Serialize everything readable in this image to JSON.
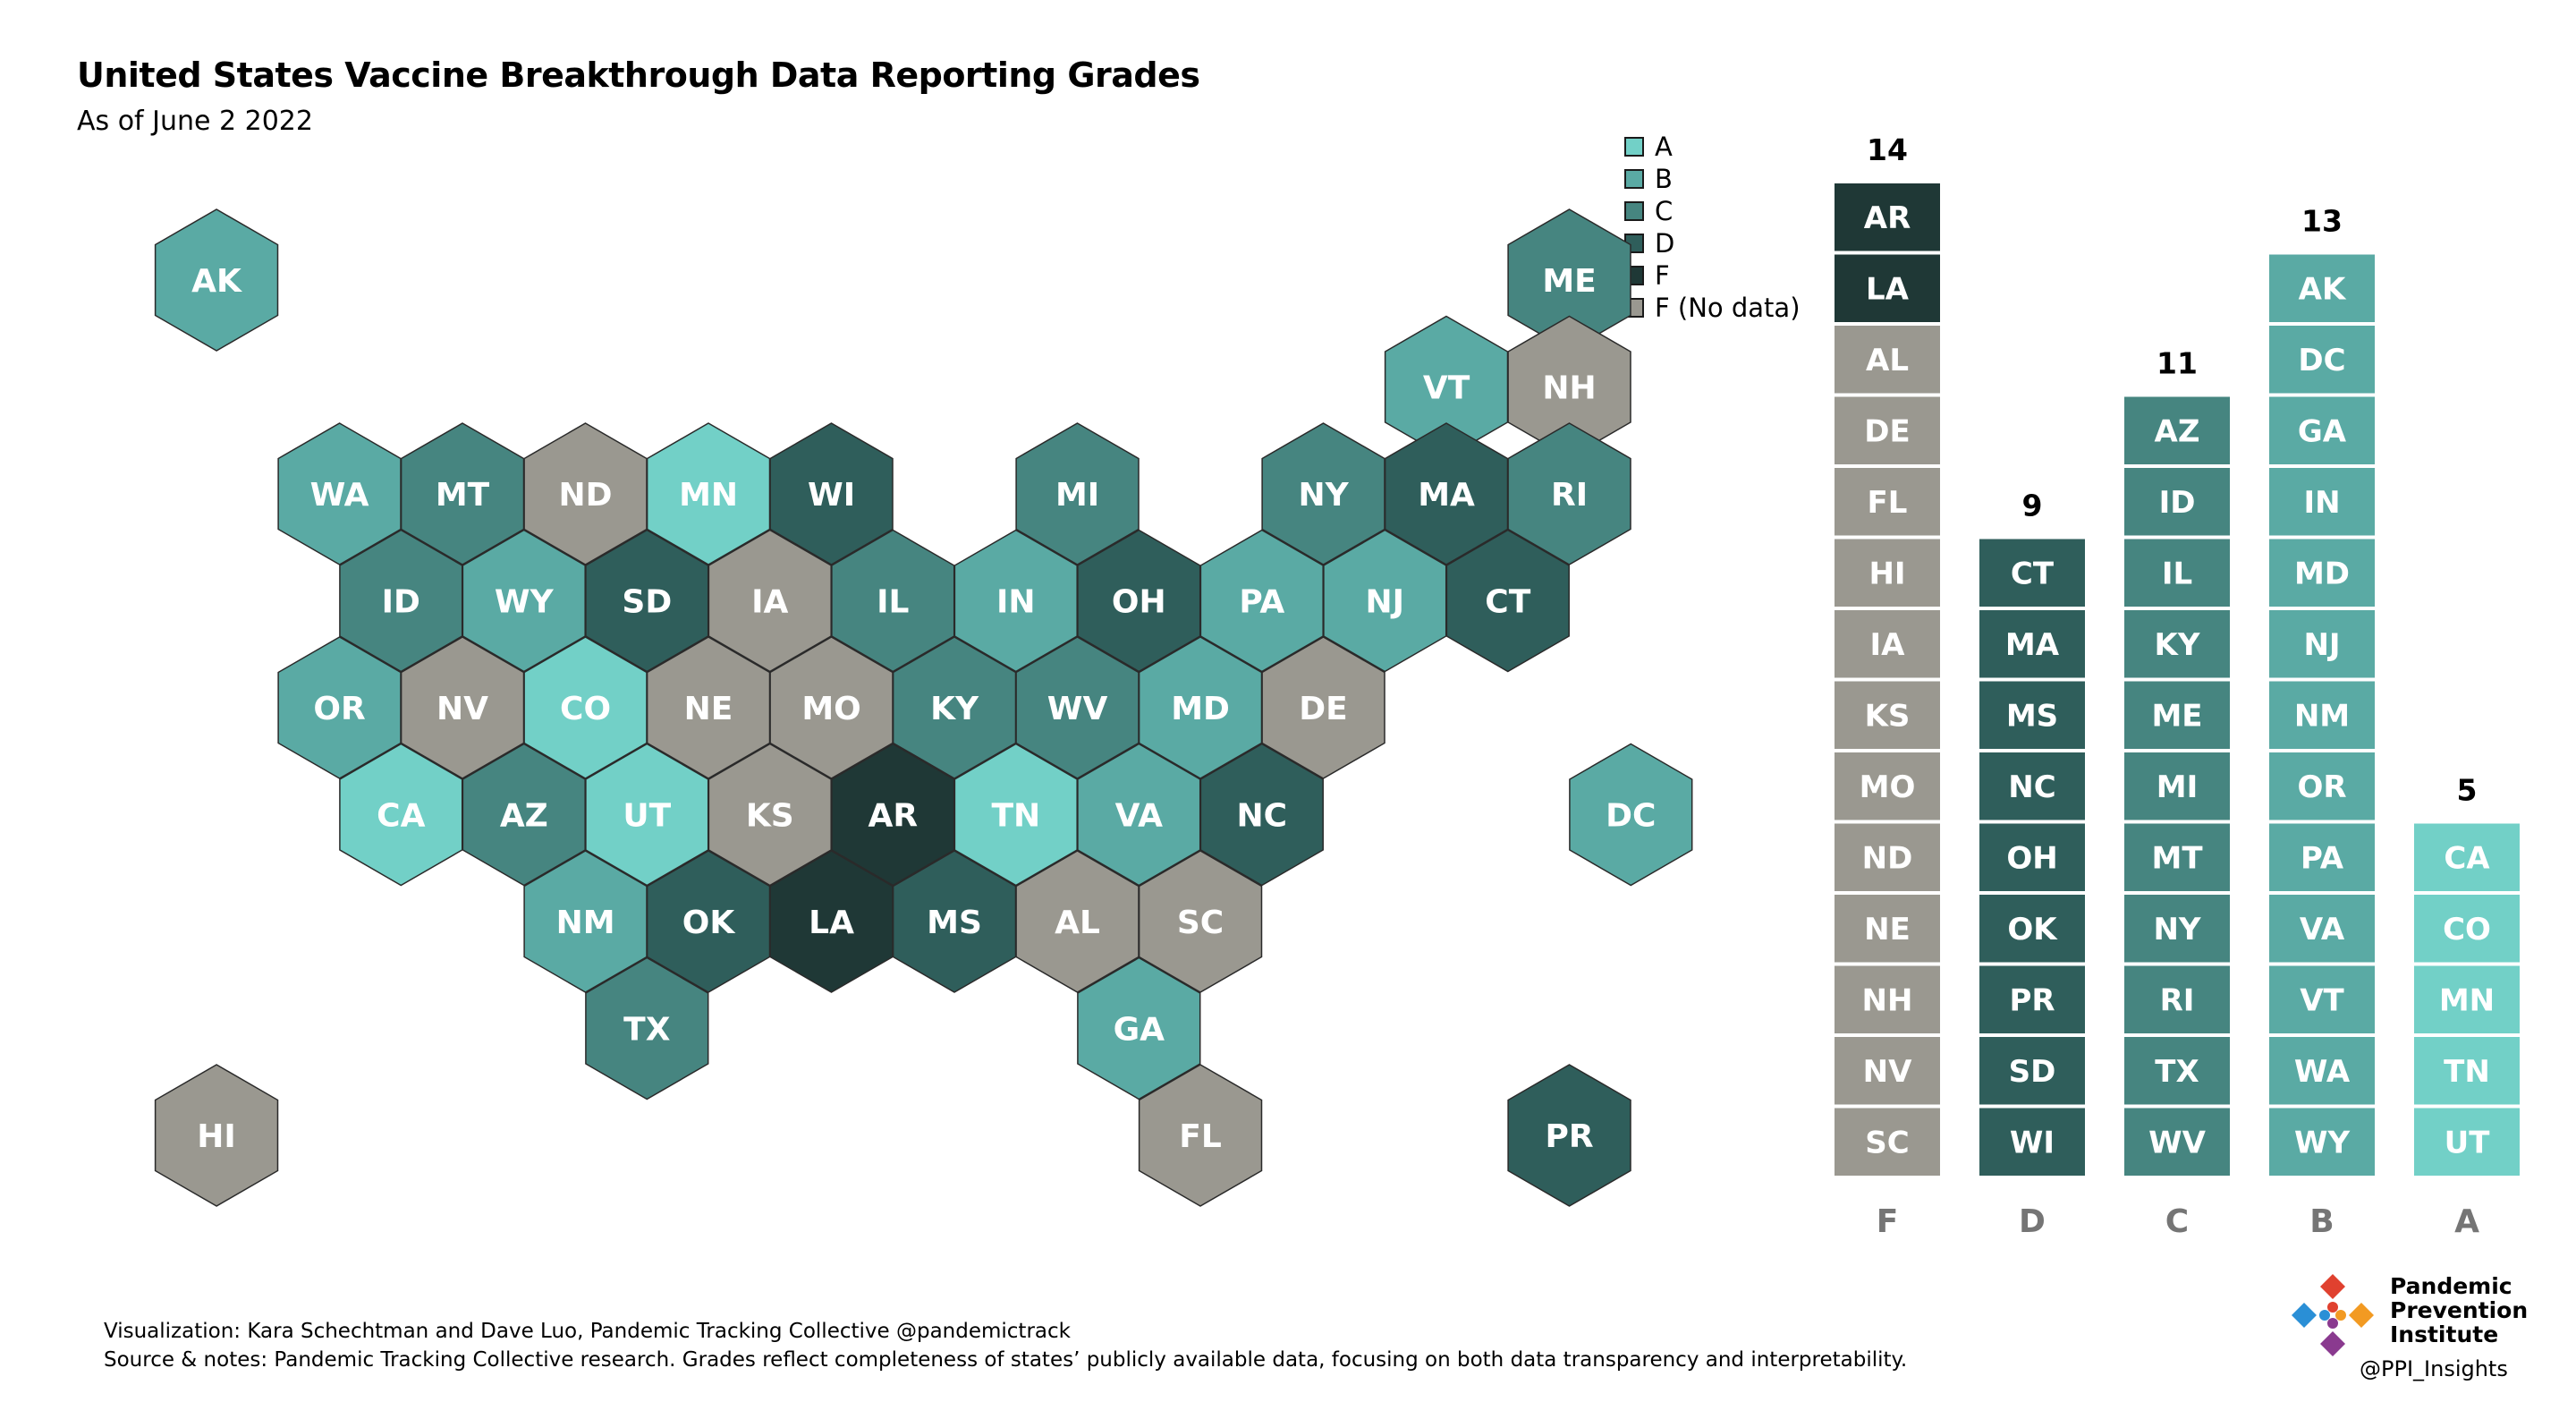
{
  "title": "United States Vaccine Breakthrough Data Reporting Grades",
  "subtitle": "As of June 2 2022",
  "colors": {
    "A": "#72d0c7",
    "B": "#5aaaa4",
    "C": "#468580",
    "D": "#2f5e5b",
    "F": "#1f3836",
    "F_nodata": "#9a9890"
  },
  "legend": [
    {
      "grade": "A",
      "label": "A"
    },
    {
      "grade": "B",
      "label": "B"
    },
    {
      "grade": "C",
      "label": "C"
    },
    {
      "grade": "D",
      "label": "D"
    },
    {
      "grade": "F",
      "label": "F"
    },
    {
      "grade": "F_nodata",
      "label": "F (No data)"
    }
  ],
  "chart_data": [
    {
      "type": "tile_map",
      "tiles": [
        {
          "state": "AK",
          "grade": "B"
        },
        {
          "state": "ME",
          "grade": "C"
        },
        {
          "state": "VT",
          "grade": "B"
        },
        {
          "state": "NH",
          "grade": "F_nodata"
        },
        {
          "state": "WA",
          "grade": "B"
        },
        {
          "state": "MT",
          "grade": "C"
        },
        {
          "state": "ND",
          "grade": "F_nodata"
        },
        {
          "state": "MN",
          "grade": "A"
        },
        {
          "state": "WI",
          "grade": "D"
        },
        {
          "state": "MI",
          "grade": "C"
        },
        {
          "state": "NY",
          "grade": "C"
        },
        {
          "state": "MA",
          "grade": "D"
        },
        {
          "state": "RI",
          "grade": "C"
        },
        {
          "state": "ID",
          "grade": "C"
        },
        {
          "state": "WY",
          "grade": "B"
        },
        {
          "state": "SD",
          "grade": "D"
        },
        {
          "state": "IA",
          "grade": "F_nodata"
        },
        {
          "state": "IL",
          "grade": "C"
        },
        {
          "state": "IN",
          "grade": "B"
        },
        {
          "state": "OH",
          "grade": "D"
        },
        {
          "state": "PA",
          "grade": "B"
        },
        {
          "state": "NJ",
          "grade": "B"
        },
        {
          "state": "CT",
          "grade": "D"
        },
        {
          "state": "OR",
          "grade": "B"
        },
        {
          "state": "NV",
          "grade": "F_nodata"
        },
        {
          "state": "CO",
          "grade": "A"
        },
        {
          "state": "NE",
          "grade": "F_nodata"
        },
        {
          "state": "MO",
          "grade": "F_nodata"
        },
        {
          "state": "KY",
          "grade": "C"
        },
        {
          "state": "WV",
          "grade": "C"
        },
        {
          "state": "MD",
          "grade": "B"
        },
        {
          "state": "DE",
          "grade": "F_nodata"
        },
        {
          "state": "CA",
          "grade": "A"
        },
        {
          "state": "AZ",
          "grade": "C"
        },
        {
          "state": "UT",
          "grade": "A"
        },
        {
          "state": "KS",
          "grade": "F_nodata"
        },
        {
          "state": "AR",
          "grade": "F"
        },
        {
          "state": "TN",
          "grade": "A"
        },
        {
          "state": "VA",
          "grade": "B"
        },
        {
          "state": "NC",
          "grade": "D"
        },
        {
          "state": "DC",
          "grade": "B"
        },
        {
          "state": "NM",
          "grade": "B"
        },
        {
          "state": "OK",
          "grade": "D"
        },
        {
          "state": "LA",
          "grade": "F"
        },
        {
          "state": "MS",
          "grade": "D"
        },
        {
          "state": "AL",
          "grade": "F_nodata"
        },
        {
          "state": "SC",
          "grade": "F_nodata"
        },
        {
          "state": "TX",
          "grade": "C"
        },
        {
          "state": "GA",
          "grade": "B"
        },
        {
          "state": "HI",
          "grade": "F_nodata"
        },
        {
          "state": "FL",
          "grade": "F_nodata"
        },
        {
          "state": "PR",
          "grade": "D"
        }
      ]
    },
    {
      "type": "stacked_tile_bar",
      "categories": [
        "F",
        "D",
        "C",
        "B",
        "A"
      ],
      "counts": [
        14,
        9,
        11,
        13,
        5
      ],
      "columns": [
        {
          "grade": "F",
          "count": 14,
          "items": [
            {
              "state": "AR",
              "grade": "F"
            },
            {
              "state": "LA",
              "grade": "F"
            },
            {
              "state": "AL",
              "grade": "F_nodata"
            },
            {
              "state": "DE",
              "grade": "F_nodata"
            },
            {
              "state": "FL",
              "grade": "F_nodata"
            },
            {
              "state": "HI",
              "grade": "F_nodata"
            },
            {
              "state": "IA",
              "grade": "F_nodata"
            },
            {
              "state": "KS",
              "grade": "F_nodata"
            },
            {
              "state": "MO",
              "grade": "F_nodata"
            },
            {
              "state": "ND",
              "grade": "F_nodata"
            },
            {
              "state": "NE",
              "grade": "F_nodata"
            },
            {
              "state": "NH",
              "grade": "F_nodata"
            },
            {
              "state": "NV",
              "grade": "F_nodata"
            },
            {
              "state": "SC",
              "grade": "F_nodata"
            }
          ]
        },
        {
          "grade": "D",
          "count": 9,
          "items": [
            {
              "state": "CT",
              "grade": "D"
            },
            {
              "state": "MA",
              "grade": "D"
            },
            {
              "state": "MS",
              "grade": "D"
            },
            {
              "state": "NC",
              "grade": "D"
            },
            {
              "state": "OH",
              "grade": "D"
            },
            {
              "state": "OK",
              "grade": "D"
            },
            {
              "state": "PR",
              "grade": "D"
            },
            {
              "state": "SD",
              "grade": "D"
            },
            {
              "state": "WI",
              "grade": "D"
            }
          ]
        },
        {
          "grade": "C",
          "count": 11,
          "items": [
            {
              "state": "AZ",
              "grade": "C"
            },
            {
              "state": "ID",
              "grade": "C"
            },
            {
              "state": "IL",
              "grade": "C"
            },
            {
              "state": "KY",
              "grade": "C"
            },
            {
              "state": "ME",
              "grade": "C"
            },
            {
              "state": "MI",
              "grade": "C"
            },
            {
              "state": "MT",
              "grade": "C"
            },
            {
              "state": "NY",
              "grade": "C"
            },
            {
              "state": "RI",
              "grade": "C"
            },
            {
              "state": "TX",
              "grade": "C"
            },
            {
              "state": "WV",
              "grade": "C"
            }
          ]
        },
        {
          "grade": "B",
          "count": 13,
          "items": [
            {
              "state": "AK",
              "grade": "B"
            },
            {
              "state": "DC",
              "grade": "B"
            },
            {
              "state": "GA",
              "grade": "B"
            },
            {
              "state": "IN",
              "grade": "B"
            },
            {
              "state": "MD",
              "grade": "B"
            },
            {
              "state": "NJ",
              "grade": "B"
            },
            {
              "state": "NM",
              "grade": "B"
            },
            {
              "state": "OR",
              "grade": "B"
            },
            {
              "state": "PA",
              "grade": "B"
            },
            {
              "state": "VA",
              "grade": "B"
            },
            {
              "state": "VT",
              "grade": "B"
            },
            {
              "state": "WA",
              "grade": "B"
            },
            {
              "state": "WY",
              "grade": "B"
            }
          ]
        },
        {
          "grade": "A",
          "count": 5,
          "items": [
            {
              "state": "CA",
              "grade": "A"
            },
            {
              "state": "CO",
              "grade": "A"
            },
            {
              "state": "MN",
              "grade": "A"
            },
            {
              "state": "TN",
              "grade": "A"
            },
            {
              "state": "UT",
              "grade": "A"
            }
          ]
        }
      ]
    }
  ],
  "footer": {
    "line1": "Visualization: Kara Schechtman and Dave Luo, Pandemic Tracking Collective @pandemictrack",
    "line2": "Source & notes: Pandemic Tracking Collective research. Grades reflect completeness of states’ publicly available data, focusing on both data transparency and interpretability."
  },
  "logo": {
    "line1": "Pandemic",
    "line2": "Prevention",
    "line3": "Institute",
    "handle": "@PPI_Insights"
  }
}
